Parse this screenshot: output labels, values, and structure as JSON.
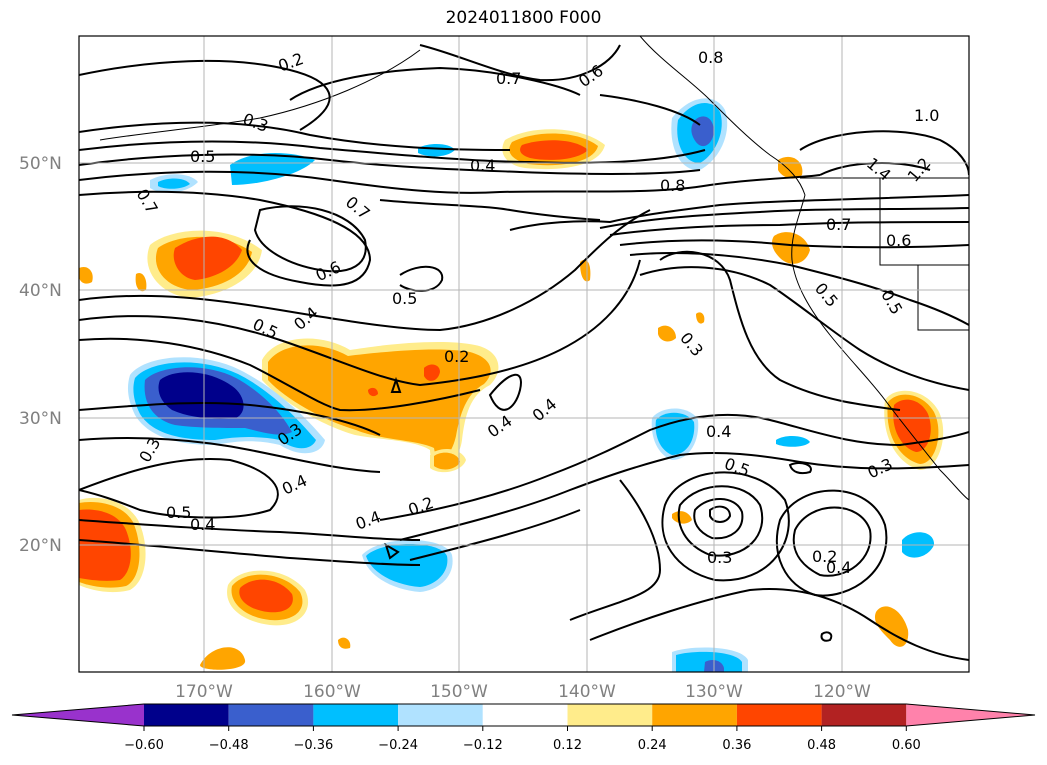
{
  "title": "2024011800 F000",
  "axes": {
    "lat_labels": [
      "50°N",
      "40°N",
      "30°N",
      "20°N"
    ],
    "lon_labels": [
      "170°W",
      "160°W",
      "150°W",
      "140°W",
      "130°W",
      "120°W"
    ]
  },
  "contour_labels": [
    "0.2",
    "0.7",
    "0.6",
    "0.8",
    "0.3",
    "0.5",
    "0.4",
    "1.0",
    "0.7",
    "0.7",
    "0.8",
    "1.4",
    "1.2",
    "0.7",
    "0.6",
    "0.5",
    "0.6",
    "0.5",
    "0.5",
    "0.5",
    "0.4",
    "0.2",
    "0.3",
    "0.4",
    "0.4",
    "0.3",
    "0.3",
    "0.4",
    "0.5",
    "0.4",
    "0.3",
    "0.2",
    "0.5",
    "0.4",
    "0.4",
    "0.3",
    "0.2",
    "0.4"
  ],
  "colorbar": {
    "ticks": [
      "−0.60",
      "−0.48",
      "−0.36",
      "−0.24",
      "−0.12",
      "0.12",
      "0.24",
      "0.36",
      "0.48",
      "0.60"
    ],
    "colors": [
      "#9932cc",
      "#00008b",
      "#3a5fcd",
      "#00bfff",
      "#b0e2ff",
      "#ffffff",
      "#ffec8b",
      "#ffa500",
      "#ff4500",
      "#b22222",
      "#ff82ab"
    ]
  },
  "colors": {
    "deep_blue": "#00008b",
    "mid_blue": "#3a5fcd",
    "sky_blue": "#00bfff",
    "light_blue": "#b0e2ff",
    "light_yellow": "#ffec8b",
    "orange": "#ffa500",
    "red_orange": "#ff4500"
  }
}
